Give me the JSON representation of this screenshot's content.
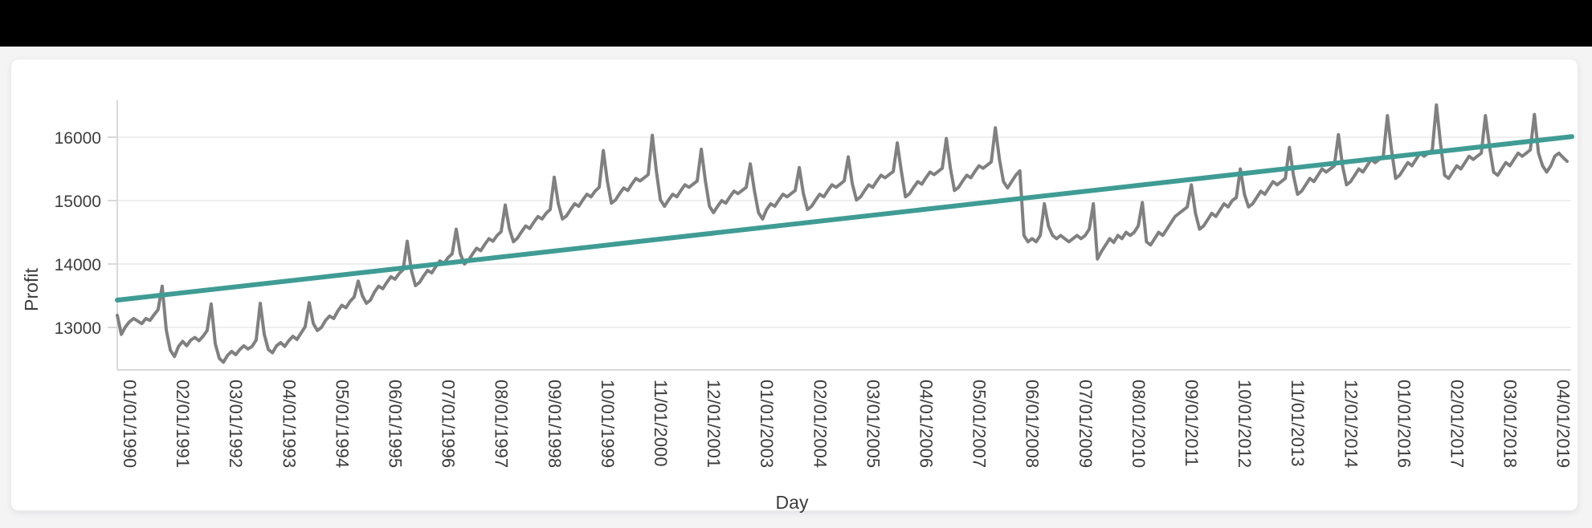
{
  "window": {
    "top_bar_color": "#000000",
    "page_background": "#f4f4f5",
    "card_background": "#ffffff"
  },
  "chart_data": {
    "type": "line",
    "title": "",
    "xlabel": "Day",
    "ylabel": "Profit",
    "grid": "horizontal-only",
    "legend_position": "none",
    "axis_color": "#d9d9d9",
    "grid_color": "#efefef",
    "text_color": "#3d3d3d",
    "y_ticks": [
      13000,
      14000,
      15000,
      16000
    ],
    "y_domain": [
      12330,
      16580
    ],
    "x_tick_every": 13,
    "x_tick_labels": [
      "01/01/1990",
      "02/01/1991",
      "03/01/1992",
      "04/01/1993",
      "05/01/1994",
      "06/01/1995",
      "07/01/1996",
      "08/01/1997",
      "09/01/1998",
      "10/01/1999",
      "11/01/2000",
      "12/01/2001",
      "01/01/2003",
      "02/01/2004",
      "03/01/2005",
      "04/01/2006",
      "05/01/2007",
      "06/01/2008",
      "07/01/2009",
      "08/01/2010",
      "09/01/2011",
      "10/01/2012",
      "11/01/2013",
      "12/01/2014",
      "01/01/2016",
      "02/01/2017",
      "03/01/2018",
      "04/01/2019"
    ],
    "series": [
      {
        "name": "profit",
        "color": "#808080",
        "width": 4,
        "values": [
          13190,
          12890,
          13010,
          13090,
          13140,
          13100,
          13060,
          13140,
          13110,
          13200,
          13280,
          13650,
          12960,
          12640,
          12540,
          12700,
          12780,
          12710,
          12800,
          12840,
          12790,
          12860,
          12950,
          13370,
          12740,
          12510,
          12450,
          12560,
          12620,
          12570,
          12650,
          12710,
          12660,
          12700,
          12800,
          13380,
          12890,
          12650,
          12600,
          12710,
          12760,
          12700,
          12790,
          12860,
          12810,
          12910,
          13010,
          13390,
          13060,
          12950,
          13000,
          13110,
          13180,
          13140,
          13260,
          13350,
          13310,
          13410,
          13480,
          13730,
          13500,
          13380,
          13430,
          13560,
          13650,
          13610,
          13710,
          13800,
          13760,
          13850,
          13910,
          14360,
          13900,
          13660,
          13710,
          13810,
          13900,
          13860,
          13960,
          14050,
          14010,
          14100,
          14160,
          14550,
          14160,
          14000,
          14060,
          14160,
          14250,
          14210,
          14310,
          14400,
          14360,
          14450,
          14510,
          14930,
          14560,
          14350,
          14410,
          14510,
          14600,
          14560,
          14660,
          14750,
          14710,
          14800,
          14860,
          15370,
          14950,
          14710,
          14760,
          14860,
          14950,
          14910,
          15010,
          15100,
          15060,
          15150,
          15210,
          15790,
          15310,
          14960,
          15010,
          15110,
          15200,
          15160,
          15260,
          15350,
          15310,
          15360,
          15410,
          16030,
          15460,
          15010,
          14910,
          15010,
          15100,
          15060,
          15160,
          15250,
          15210,
          15260,
          15310,
          15810,
          15310,
          14910,
          14810,
          14910,
          15000,
          14960,
          15060,
          15150,
          15110,
          15160,
          15210,
          15580,
          15160,
          14810,
          14710,
          14860,
          14950,
          14910,
          15010,
          15100,
          15060,
          15110,
          15160,
          15520,
          15110,
          14860,
          14910,
          15010,
          15100,
          15060,
          15160,
          15250,
          15210,
          15260,
          15310,
          15690,
          15260,
          15010,
          15060,
          15160,
          15250,
          15210,
          15310,
          15400,
          15360,
          15410,
          15460,
          15910,
          15460,
          15060,
          15110,
          15210,
          15300,
          15260,
          15360,
          15450,
          15410,
          15460,
          15510,
          15980,
          15510,
          15160,
          15210,
          15310,
          15400,
          15360,
          15460,
          15550,
          15510,
          15560,
          15610,
          16150,
          15650,
          15300,
          15200,
          15300,
          15400,
          15470,
          14450,
          14350,
          14400,
          14350,
          14450,
          14950,
          14600,
          14450,
          14400,
          14450,
          14400,
          14350,
          14400,
          14450,
          14400,
          14450,
          14550,
          14950,
          14080,
          14200,
          14300,
          14400,
          14340,
          14450,
          14400,
          14500,
          14450,
          14500,
          14600,
          14970,
          14350,
          14300,
          14400,
          14500,
          14450,
          14550,
          14650,
          14750,
          14800,
          14850,
          14900,
          15250,
          14800,
          14550,
          14600,
          14700,
          14800,
          14750,
          14850,
          14950,
          14900,
          15000,
          15050,
          15500,
          15100,
          14900,
          14950,
          15050,
          15150,
          15100,
          15200,
          15300,
          15250,
          15300,
          15350,
          15840,
          15400,
          15100,
          15150,
          15250,
          15350,
          15300,
          15400,
          15500,
          15450,
          15500,
          15550,
          16040,
          15550,
          15250,
          15300,
          15400,
          15500,
          15450,
          15550,
          15650,
          15600,
          15650,
          15700,
          16340,
          15800,
          15350,
          15400,
          15500,
          15600,
          15550,
          15650,
          15750,
          15700,
          15750,
          15800,
          16510,
          15900,
          15400,
          15350,
          15450,
          15550,
          15500,
          15600,
          15700,
          15650,
          15700,
          15750,
          16340,
          15850,
          15450,
          15400,
          15500,
          15600,
          15550,
          15650,
          15750,
          15700,
          15750,
          15800,
          16360,
          15750,
          15550,
          15450,
          15550,
          15700,
          15750,
          15680,
          15620
        ]
      }
    ],
    "trend": {
      "name": "trend-line",
      "color": "#3f9c94",
      "width": 6,
      "start_value": 13430,
      "end_value": 16010
    }
  }
}
